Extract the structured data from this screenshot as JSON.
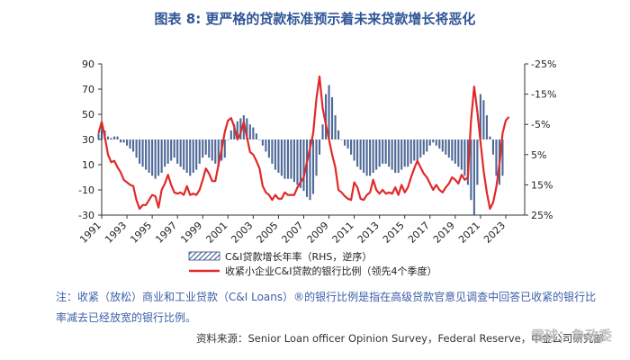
{
  "title": "图表 8:  更严格的贷款标准预示着未来贷款增长将恶化",
  "note": "注：收紧（放松）商业和工业贷款（C&I Loans）®的银行比例是指在高级贷款官意见调查中回答已收紧的银行比率减去已经放宽的银行比例。",
  "source": "资料来源：Senior Loan officer Opinion Survey，Federal Reserve，中金公司研究部",
  "watermark": "雪球：鲁政委",
  "legend": {
    "bar_label": "C&I贷款增长年率（RHS，逆序）",
    "line_label": "收紧小企业C&I贷款的银行比例（领先4个季度）"
  },
  "colors": {
    "line": "#e02a2a",
    "bar": "#2f4f86",
    "title": "#2f5597"
  },
  "chart_data": {
    "type": "bar+line",
    "title": "更严格的贷款标准预示着未来贷款增长将恶化",
    "x_ticks": [
      "1991",
      "1993",
      "1995",
      "1997",
      "1999",
      "2001",
      "2003",
      "2005",
      "2007",
      "2009",
      "2011",
      "2013",
      "2015",
      "2017",
      "2019",
      "2021",
      "2023"
    ],
    "x_range": [
      1991.0,
      2024.5
    ],
    "left_axis": {
      "ticks": [
        "90",
        "70",
        "50",
        "30",
        "10",
        "-10",
        "-30"
      ],
      "range": [
        -30,
        90
      ]
    },
    "right_axis": {
      "ticks": [
        "-25%",
        "-15%",
        "-5%",
        "5%",
        "15%",
        "25%"
      ],
      "range": [
        -25,
        25
      ],
      "inverted": true
    },
    "series": [
      {
        "name": "收紧小企业C&I贷款的银行比例（领先4个季度）",
        "type": "line",
        "axis": "left",
        "points": [
          [
            1990.75,
            35
          ],
          [
            1991.0,
            44
          ],
          [
            1991.25,
            32
          ],
          [
            1991.5,
            18
          ],
          [
            1991.75,
            12
          ],
          [
            1992.0,
            13
          ],
          [
            1992.25,
            8
          ],
          [
            1992.5,
            4
          ],
          [
            1992.75,
            -2
          ],
          [
            1993.0,
            -4
          ],
          [
            1993.25,
            -6
          ],
          [
            1993.5,
            -7
          ],
          [
            1993.75,
            -18
          ],
          [
            1994.0,
            -25
          ],
          [
            1994.25,
            -22
          ],
          [
            1994.5,
            -22
          ],
          [
            1994.75,
            -18
          ],
          [
            1995.0,
            -14
          ],
          [
            1995.25,
            -15
          ],
          [
            1995.5,
            -24
          ],
          [
            1995.75,
            -10
          ],
          [
            1996.0,
            -5
          ],
          [
            1996.25,
            2
          ],
          [
            1996.5,
            -6
          ],
          [
            1996.75,
            -12
          ],
          [
            1997.0,
            -13
          ],
          [
            1997.25,
            -12
          ],
          [
            1997.5,
            -14
          ],
          [
            1997.75,
            -7
          ],
          [
            1998.0,
            -14
          ],
          [
            1998.25,
            -13
          ],
          [
            1998.5,
            -14
          ],
          [
            1998.75,
            -10
          ],
          [
            1999.0,
            -2
          ],
          [
            1999.25,
            7
          ],
          [
            1999.5,
            3
          ],
          [
            1999.75,
            -3
          ],
          [
            2000.0,
            -3
          ],
          [
            2000.25,
            10
          ],
          [
            2000.5,
            22
          ],
          [
            2000.75,
            36
          ],
          [
            2001.0,
            45
          ],
          [
            2001.25,
            47
          ],
          [
            2001.5,
            40
          ],
          [
            2001.75,
            30
          ],
          [
            2002.0,
            35
          ],
          [
            2002.25,
            44
          ],
          [
            2002.5,
            32
          ],
          [
            2002.75,
            20
          ],
          [
            2003.0,
            18
          ],
          [
            2003.25,
            13
          ],
          [
            2003.5,
            7
          ],
          [
            2003.75,
            -7
          ],
          [
            2004.0,
            -12
          ],
          [
            2004.25,
            -14
          ],
          [
            2004.5,
            -18
          ],
          [
            2004.75,
            -14
          ],
          [
            2005.0,
            -17
          ],
          [
            2005.25,
            -17
          ],
          [
            2005.5,
            -12
          ],
          [
            2005.75,
            -14
          ],
          [
            2006.0,
            -14
          ],
          [
            2006.25,
            -14
          ],
          [
            2006.5,
            -8
          ],
          [
            2006.75,
            -4
          ],
          [
            2007.0,
            0
          ],
          [
            2007.25,
            12
          ],
          [
            2007.5,
            23
          ],
          [
            2007.75,
            35
          ],
          [
            2008.0,
            62
          ],
          [
            2008.25,
            80
          ],
          [
            2008.5,
            55
          ],
          [
            2008.75,
            42
          ],
          [
            2009.0,
            30
          ],
          [
            2009.25,
            18
          ],
          [
            2009.5,
            8
          ],
          [
            2009.75,
            -10
          ],
          [
            2010.0,
            -12
          ],
          [
            2010.25,
            -15
          ],
          [
            2010.5,
            -17
          ],
          [
            2010.75,
            -18
          ],
          [
            2011.0,
            -4
          ],
          [
            2011.25,
            -8
          ],
          [
            2011.5,
            -17
          ],
          [
            2011.75,
            -18
          ],
          [
            2012.0,
            -14
          ],
          [
            2012.25,
            -12
          ],
          [
            2012.5,
            -2
          ],
          [
            2012.75,
            -10
          ],
          [
            2013.0,
            -13
          ],
          [
            2013.25,
            -10
          ],
          [
            2013.5,
            -13
          ],
          [
            2013.75,
            -12
          ],
          [
            2014.0,
            -13
          ],
          [
            2014.25,
            -8
          ],
          [
            2014.5,
            -14
          ],
          [
            2014.75,
            -6
          ],
          [
            2015.0,
            -12
          ],
          [
            2015.25,
            -8
          ],
          [
            2015.5,
            0
          ],
          [
            2015.75,
            7
          ],
          [
            2016.0,
            13
          ],
          [
            2016.25,
            8
          ],
          [
            2016.5,
            3
          ],
          [
            2016.75,
            0
          ],
          [
            2017.0,
            -5
          ],
          [
            2017.25,
            -10
          ],
          [
            2017.5,
            -6
          ],
          [
            2017.75,
            -10
          ],
          [
            2018.0,
            -12
          ],
          [
            2018.25,
            -8
          ],
          [
            2018.5,
            -5
          ],
          [
            2018.75,
            0
          ],
          [
            2019.0,
            -2
          ],
          [
            2019.25,
            -5
          ],
          [
            2019.5,
            2
          ],
          [
            2019.75,
            -2
          ],
          [
            2020.0,
            0
          ],
          [
            2020.25,
            45
          ],
          [
            2020.5,
            72
          ],
          [
            2020.75,
            52
          ],
          [
            2021.0,
            28
          ],
          [
            2021.25,
            5
          ],
          [
            2021.5,
            -12
          ],
          [
            2021.75,
            -25
          ],
          [
            2022.0,
            -20
          ],
          [
            2022.25,
            -8
          ],
          [
            2022.5,
            10
          ],
          [
            2022.75,
            35
          ],
          [
            2023.0,
            45
          ],
          [
            2023.25,
            48
          ]
        ]
      },
      {
        "name": "C&I贷款增长年率（RHS，逆序）",
        "type": "bar",
        "axis": "right",
        "points": [
          [
            1990.75,
            -2
          ],
          [
            1991.0,
            -3
          ],
          [
            1991.25,
            -3
          ],
          [
            1991.5,
            -1
          ],
          [
            1991.75,
            -0.5
          ],
          [
            1992.0,
            -1
          ],
          [
            1992.25,
            -1
          ],
          [
            1992.5,
            1
          ],
          [
            1992.75,
            1
          ],
          [
            1993.0,
            2
          ],
          [
            1993.25,
            3
          ],
          [
            1993.5,
            4
          ],
          [
            1993.75,
            6
          ],
          [
            1994.0,
            8
          ],
          [
            1994.25,
            9
          ],
          [
            1994.5,
            10
          ],
          [
            1994.75,
            11
          ],
          [
            1995.0,
            12
          ],
          [
            1995.25,
            13
          ],
          [
            1995.5,
            12
          ],
          [
            1995.75,
            11
          ],
          [
            1996.0,
            9
          ],
          [
            1996.25,
            8
          ],
          [
            1996.5,
            7
          ],
          [
            1996.75,
            6
          ],
          [
            1997.0,
            8
          ],
          [
            1997.25,
            9
          ],
          [
            1997.5,
            10
          ],
          [
            1997.75,
            11
          ],
          [
            1998.0,
            12
          ],
          [
            1998.25,
            11
          ],
          [
            1998.5,
            10
          ],
          [
            1998.75,
            8
          ],
          [
            1999.0,
            6
          ],
          [
            1999.25,
            5
          ],
          [
            1999.5,
            6
          ],
          [
            1999.75,
            7
          ],
          [
            2000.0,
            8
          ],
          [
            2000.25,
            9
          ],
          [
            2000.5,
            7
          ],
          [
            2000.75,
            6
          ],
          [
            2001.0,
            0
          ],
          [
            2001.25,
            -3
          ],
          [
            2001.5,
            -5
          ],
          [
            2001.75,
            -6
          ],
          [
            2002.0,
            -7
          ],
          [
            2002.25,
            -8
          ],
          [
            2002.5,
            -7
          ],
          [
            2002.75,
            -5
          ],
          [
            2003.0,
            -4
          ],
          [
            2003.25,
            -2
          ],
          [
            2003.5,
            0
          ],
          [
            2003.75,
            2
          ],
          [
            2004.0,
            4
          ],
          [
            2004.25,
            6
          ],
          [
            2004.5,
            8
          ],
          [
            2004.75,
            10
          ],
          [
            2005.0,
            11
          ],
          [
            2005.25,
            12
          ],
          [
            2005.5,
            13
          ],
          [
            2005.75,
            13
          ],
          [
            2006.0,
            13
          ],
          [
            2006.25,
            14
          ],
          [
            2006.5,
            15
          ],
          [
            2006.75,
            16
          ],
          [
            2007.0,
            17
          ],
          [
            2007.25,
            19
          ],
          [
            2007.5,
            20
          ],
          [
            2007.75,
            18
          ],
          [
            2008.0,
            12
          ],
          [
            2008.25,
            5
          ],
          [
            2008.5,
            -5
          ],
          [
            2008.75,
            -15
          ],
          [
            2009.0,
            -18
          ],
          [
            2009.25,
            -14
          ],
          [
            2009.5,
            -8
          ],
          [
            2009.75,
            -3
          ],
          [
            2010.0,
            0
          ],
          [
            2010.25,
            2
          ],
          [
            2010.5,
            3
          ],
          [
            2010.75,
            5
          ],
          [
            2011.0,
            7
          ],
          [
            2011.25,
            9
          ],
          [
            2011.5,
            10
          ],
          [
            2011.75,
            11
          ],
          [
            2012.0,
            12
          ],
          [
            2012.25,
            12
          ],
          [
            2012.5,
            11
          ],
          [
            2012.75,
            10
          ],
          [
            2013.0,
            9
          ],
          [
            2013.25,
            8
          ],
          [
            2013.5,
            8
          ],
          [
            2013.75,
            9
          ],
          [
            2014.0,
            10
          ],
          [
            2014.25,
            11
          ],
          [
            2014.5,
            11
          ],
          [
            2014.75,
            10
          ],
          [
            2015.0,
            9
          ],
          [
            2015.25,
            9
          ],
          [
            2015.5,
            8
          ],
          [
            2015.75,
            7
          ],
          [
            2016.0,
            7
          ],
          [
            2016.25,
            6
          ],
          [
            2016.5,
            5
          ],
          [
            2016.75,
            4
          ],
          [
            2017.0,
            2
          ],
          [
            2017.25,
            1
          ],
          [
            2017.5,
            2
          ],
          [
            2017.75,
            3
          ],
          [
            2018.0,
            4
          ],
          [
            2018.25,
            5
          ],
          [
            2018.5,
            6
          ],
          [
            2018.75,
            7
          ],
          [
            2019.0,
            8
          ],
          [
            2019.25,
            9
          ],
          [
            2019.5,
            10
          ],
          [
            2019.75,
            12
          ],
          [
            2020.0,
            15
          ],
          [
            2020.25,
            20
          ],
          [
            2020.5,
            25
          ],
          [
            2020.75,
            15
          ],
          [
            2021.0,
            -15
          ],
          [
            2021.25,
            -13
          ],
          [
            2021.5,
            -8
          ],
          [
            2021.75,
            -1
          ],
          [
            2022.0,
            5
          ],
          [
            2022.25,
            12
          ],
          [
            2022.5,
            15
          ],
          [
            2022.75,
            12
          ]
        ]
      }
    ]
  }
}
